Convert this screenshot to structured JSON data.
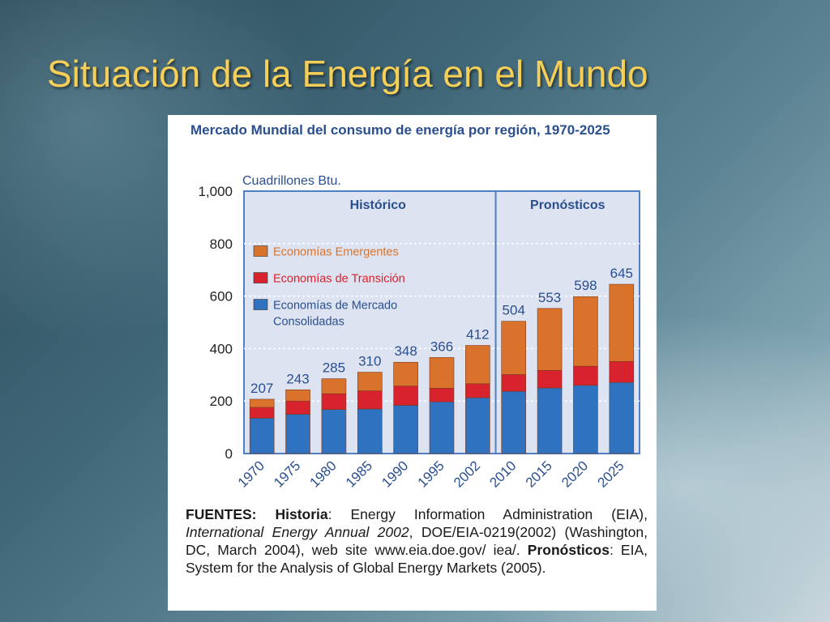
{
  "slide": {
    "title": "Situación de la Energía en el Mundo"
  },
  "figure": {
    "source_label": "FUENTES:",
    "history_label": "Historia",
    "history_text_1": ": Energy Information Administration (EIA), ",
    "history_publication": "International Energy Annual 2002",
    "history_text_2": ", DOE/EIA-0219(2002) (Washington, DC, March 2004), web site www.eia.doe.gov/ iea/. ",
    "forecast_label": "Pronósticos",
    "forecast_text": ": EIA, System for the Analysis of Global Energy Markets (2005)."
  },
  "chart_data": {
    "type": "bar",
    "stacked": true,
    "title": "Mercado Mundial del consumo de energía por región, 1970-2025",
    "ylabel": "Cuadrillones Btu.",
    "ylim": [
      0,
      1000
    ],
    "yticks": [
      "0",
      "200",
      "400",
      "600",
      "800",
      "1,000"
    ],
    "ytick_values": [
      0,
      200,
      400,
      600,
      800,
      1000
    ],
    "grid": true,
    "legend_position": "top-left",
    "regions": [
      {
        "label": "Histórico",
        "categories": [
          "1970",
          "1975",
          "1980",
          "1985",
          "1990",
          "1995",
          "2002"
        ]
      },
      {
        "label": "Pronósticos",
        "categories": [
          "2010",
          "2015",
          "2020",
          "2025"
        ]
      }
    ],
    "categories": [
      "1970",
      "1975",
      "1980",
      "1985",
      "1990",
      "1995",
      "2002",
      "2010",
      "2015",
      "2020",
      "2025"
    ],
    "series": [
      {
        "name": "Economías de Mercado Consolidadas",
        "color": "#2f72bf",
        "values": [
          135,
          150,
          168,
          170,
          184,
          197,
          213,
          237,
          250,
          260,
          271
        ]
      },
      {
        "name": "Economías de Transición",
        "color": "#d8222d",
        "values": [
          41,
          50,
          60,
          69,
          73,
          52,
          53,
          64,
          67,
          73,
          80
        ]
      },
      {
        "name": "Economías Emergentes",
        "color": "#d9732b",
        "values": [
          31,
          43,
          57,
          71,
          91,
          117,
          146,
          203,
          236,
          265,
          294
        ]
      }
    ],
    "totals": [
      207,
      243,
      285,
      310,
      348,
      366,
      412,
      504,
      553,
      598,
      645
    ],
    "legend": [
      {
        "name": "Economías Emergentes",
        "color": "#d9732b"
      },
      {
        "name": "Economías de Transición",
        "color": "#d8222d"
      },
      {
        "name": "Economías de Mercado\nConsolidadas",
        "color": "#2f72bf"
      }
    ]
  }
}
